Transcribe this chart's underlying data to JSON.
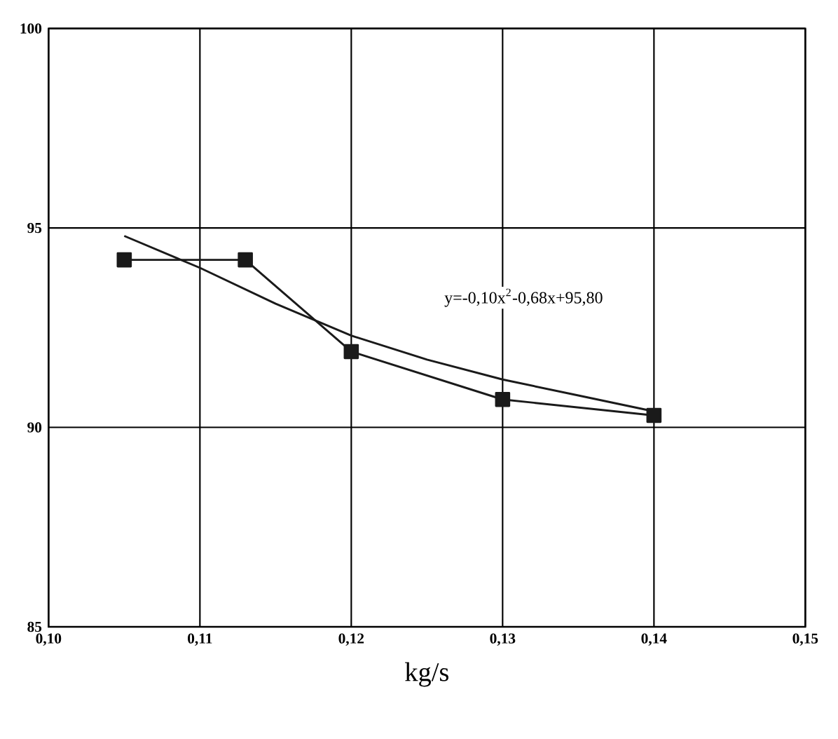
{
  "chart_data": {
    "type": "line",
    "xlabel": "kg/s",
    "series": [
      {
        "color": "#1a1a1a",
        "x": [
          0.105,
          0.113,
          0.12,
          0.13,
          0.14
        ],
        "values": [
          94.2,
          94.2,
          91.9,
          90.7,
          90.3
        ],
        "marker": "square"
      },
      {
        "color": "#1a1a1a",
        "x": [
          0.105,
          0.11,
          0.115,
          0.12,
          0.125,
          0.13,
          0.135,
          0.14
        ],
        "values": [
          94.8,
          94.0,
          93.1,
          92.3,
          91.7,
          91.2,
          90.8,
          90.4
        ],
        "marker": "none"
      }
    ],
    "xlim": [
      0.1,
      0.15
    ],
    "xticks": [
      {
        "value": 0.1,
        "label": "0,10"
      },
      {
        "value": 0.11,
        "label": "0,11"
      },
      {
        "value": 0.12,
        "label": "0,12"
      },
      {
        "value": 0.13,
        "label": "0,13"
      },
      {
        "value": 0.14,
        "label": "0,14"
      },
      {
        "value": 0.15,
        "label": "0,15"
      }
    ],
    "ylim": [
      85,
      100
    ],
    "yticks": [
      85,
      90,
      95,
      100
    ],
    "grid": true,
    "line_style": "solid",
    "annotations": [
      "y=-0,10x$^{2}$-0,68x+95,80"
    ]
  }
}
